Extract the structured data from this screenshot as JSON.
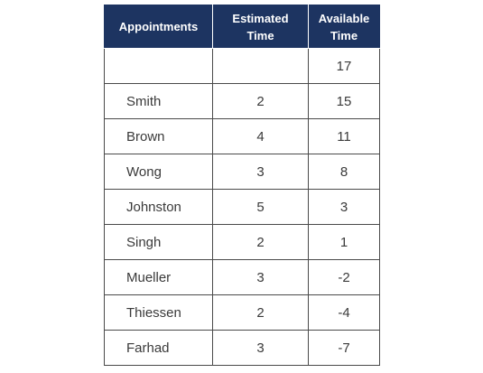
{
  "table": {
    "headers": [
      [
        "Appointments"
      ],
      [
        "Estimated",
        "Time"
      ],
      [
        "Available",
        "Time"
      ]
    ],
    "rows": [
      [
        "",
        "",
        "17"
      ],
      [
        "Smith",
        "2",
        "15"
      ],
      [
        "Brown",
        "4",
        "11"
      ],
      [
        "Wong",
        "3",
        "8"
      ],
      [
        "Johnston",
        "5",
        "3"
      ],
      [
        "Singh",
        "2",
        "1"
      ],
      [
        "Mueller",
        "3",
        "-2"
      ],
      [
        "Thiessen",
        "2",
        "-4"
      ],
      [
        "Farhad",
        "3",
        "-7"
      ]
    ]
  },
  "colors": {
    "header_background": "#1d3461",
    "header_text": "#ffffff",
    "border": "#4a4a4a"
  }
}
